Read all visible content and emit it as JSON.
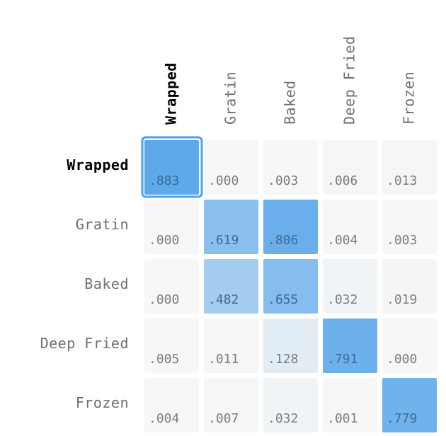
{
  "chart_data": {
    "type": "heatmap",
    "title": "",
    "xlabel": "",
    "ylabel": "",
    "x_categories": [
      "Wrapped",
      "Gratin",
      "Baked",
      "Deep Fried",
      "Frozen"
    ],
    "y_categories": [
      "Wrapped",
      "Gratin",
      "Baked",
      "Deep Fried",
      "Frozen"
    ],
    "values": [
      [
        0.883,
        0.0,
        0.003,
        0.006,
        0.013
      ],
      [
        0.0,
        0.619,
        0.806,
        0.004,
        0.003
      ],
      [
        0.0,
        0.482,
        0.655,
        0.032,
        0.019
      ],
      [
        0.005,
        0.011,
        0.128,
        0.791,
        0.0
      ],
      [
        0.004,
        0.007,
        0.032,
        0.001,
        0.779
      ]
    ],
    "value_labels": [
      [
        ".883",
        ".000",
        ".003",
        ".006",
        ".013"
      ],
      [
        ".000",
        ".619",
        ".806",
        ".004",
        ".003"
      ],
      [
        ".000",
        ".482",
        ".655",
        ".032",
        ".019"
      ],
      [
        ".005",
        ".011",
        ".128",
        ".791",
        ".000"
      ],
      [
        ".004",
        ".007",
        ".032",
        ".001",
        ".779"
      ]
    ],
    "highlighted": {
      "row": 0,
      "col": 0
    },
    "colors": {
      "cell_low": "#f7f7f7",
      "cell_high": "#5aa7ea",
      "highlight_border": "#4aa3ec",
      "label": "#707070",
      "label_highlight": "#000000",
      "value_light": "#7d7d7d",
      "value_dark": "#3e6a92"
    }
  }
}
